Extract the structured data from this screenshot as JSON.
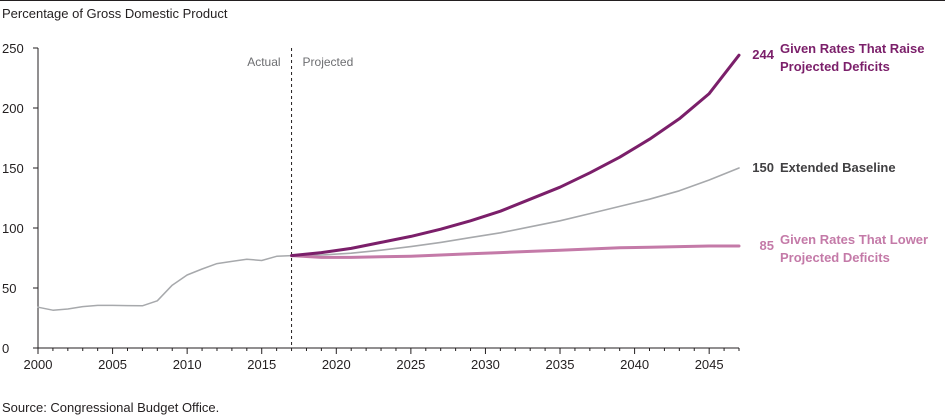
{
  "chart_data": {
    "type": "line",
    "ylabel": "Percentage of Gross Domestic Product",
    "source": "Source: Congressional Budget Office.",
    "xlim": [
      2000,
      2047
    ],
    "ylim": [
      0,
      250
    ],
    "x_ticks": [
      "2000",
      "2005",
      "2010",
      "2015",
      "2020",
      "2025",
      "2030",
      "2035",
      "2040",
      "2045"
    ],
    "y_ticks": [
      "0",
      "50",
      "100",
      "150",
      "200",
      "250"
    ],
    "divider_year": 2017,
    "period_labels": {
      "actual": "Actual",
      "projected": "Projected"
    },
    "colors": {
      "actual": "#a7a9ac",
      "baseline": "#a7a9ac",
      "raise": "#7b1f6a",
      "lower": "#c47aa8"
    },
    "series": [
      {
        "key": "actual",
        "x": [
          2000,
          2001,
          2002,
          2003,
          2004,
          2005,
          2006,
          2007,
          2008,
          2009,
          2010,
          2011,
          2012,
          2013,
          2014,
          2015,
          2016,
          2017
        ],
        "values": [
          34,
          31.5,
          32.5,
          34.5,
          35.5,
          35.5,
          35.3,
          35.2,
          39.3,
          52.3,
          60.8,
          65.8,
          70.3,
          72.2,
          74,
          72.9,
          76.4,
          77
        ]
      },
      {
        "key": "baseline",
        "name": "Extended Baseline",
        "end_label": "150",
        "x": [
          2017,
          2019,
          2021,
          2023,
          2025,
          2027,
          2029,
          2031,
          2033,
          2035,
          2037,
          2039,
          2041,
          2043,
          2045,
          2047
        ],
        "values": [
          77,
          77.5,
          79,
          81.5,
          84.5,
          88,
          92,
          96,
          101,
          106,
          112,
          118,
          124,
          131,
          140,
          150
        ]
      },
      {
        "key": "raise",
        "name": "Given Rates That Raise Projected Deficits",
        "end_label": "244",
        "x": [
          2017,
          2019,
          2021,
          2023,
          2025,
          2027,
          2029,
          2031,
          2033,
          2035,
          2037,
          2039,
          2041,
          2043,
          2045,
          2047
        ],
        "values": [
          77,
          79.5,
          83,
          88,
          93,
          99,
          106,
          114,
          124,
          134,
          146,
          159,
          174,
          191,
          212,
          244
        ]
      },
      {
        "key": "lower",
        "name": "Given Rates That Lower Projected Deficits",
        "end_label": "85",
        "x": [
          2017,
          2019,
          2021,
          2023,
          2025,
          2027,
          2029,
          2031,
          2033,
          2035,
          2037,
          2039,
          2041,
          2043,
          2045,
          2047
        ],
        "values": [
          77,
          75.5,
          75.5,
          76,
          76.5,
          77.5,
          78.5,
          79.5,
          80.5,
          81.5,
          82.5,
          83.5,
          84,
          84.5,
          85,
          85
        ]
      }
    ],
    "series_labels": {
      "raise": [
        "Given Rates That Raise",
        "Projected Deficits"
      ],
      "baseline": [
        "Extended Baseline"
      ],
      "lower": [
        "Given Rates That Lower",
        "Projected Deficits"
      ]
    }
  }
}
